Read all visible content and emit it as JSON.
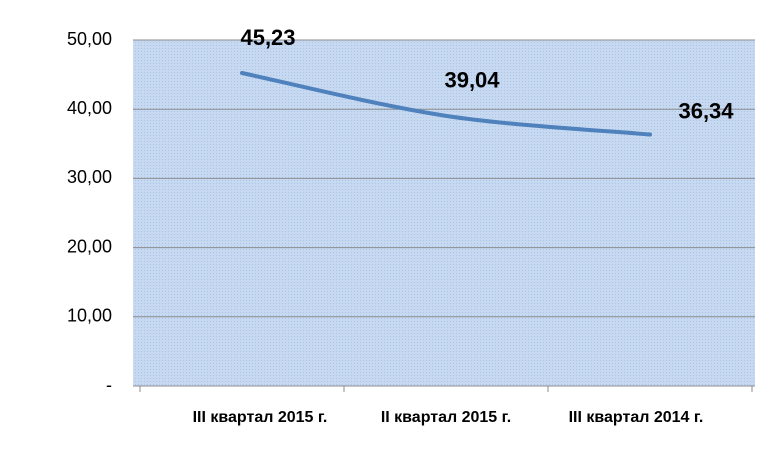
{
  "chart_data": {
    "type": "line",
    "categories": [
      "III квартал 2015 г.",
      "II квартал 2015 г.",
      "III квартал 2014 г."
    ],
    "series": [
      {
        "name": "",
        "color": "#4f81bd",
        "values": [
          45.23,
          39.04,
          36.34
        ],
        "value_labels": [
          "45,23",
          "39,04",
          "36,34"
        ]
      }
    ],
    "ylim": [
      0,
      50
    ],
    "yticks": [
      {
        "value": 0,
        "label": "-"
      },
      {
        "value": 10,
        "label": "10,00"
      },
      {
        "value": 20,
        "label": "20,00"
      },
      {
        "value": 30,
        "label": "30,00"
      },
      {
        "value": 40,
        "label": "40,00"
      },
      {
        "value": 50,
        "label": "50,00"
      }
    ],
    "grid": true
  }
}
